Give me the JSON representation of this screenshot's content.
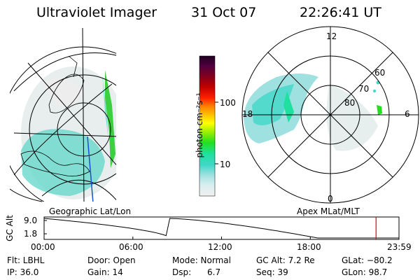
{
  "header": {
    "instrument": "Ultraviolet Imager",
    "date": "31 Oct 07",
    "time": "22:26:41 UT"
  },
  "colorbar": {
    "unit_label": "photon cm⁻²s⁻¹",
    "ticks": [
      "100",
      "10"
    ],
    "scale": "log"
  },
  "left_panel": {
    "caption": "Geographic Lat/Lon"
  },
  "right_panel": {
    "caption": "Apex  MLat/MLT",
    "mlt_labels": [
      "12",
      "18",
      "6",
      "0"
    ],
    "lat_labels": [
      "60",
      "70",
      "80"
    ]
  },
  "altitude_plot": {
    "ylabel": "GC Alt",
    "y_ticks": [
      "9.0",
      "1.8"
    ],
    "x_ticks": [
      "00:00",
      "06:00",
      "12:00",
      "18:00",
      "23:59"
    ],
    "current_time_marker_hours": 22.4478,
    "marker_color": "#dd0000"
  },
  "status": {
    "filter": "Flt: LBHL",
    "door": "Door: Open",
    "mode": "Mode: Normal",
    "gc_alt": "GC Alt: 7.2 Re",
    "glat": "GLat: −80.2",
    "ip": "IP: 36.0",
    "gain": "Gain: 14",
    "dsp_label": "Dsp:",
    "dsp_value": "6.7",
    "seq": "Seq: 39",
    "glon": "GLon: 98.7"
  }
}
